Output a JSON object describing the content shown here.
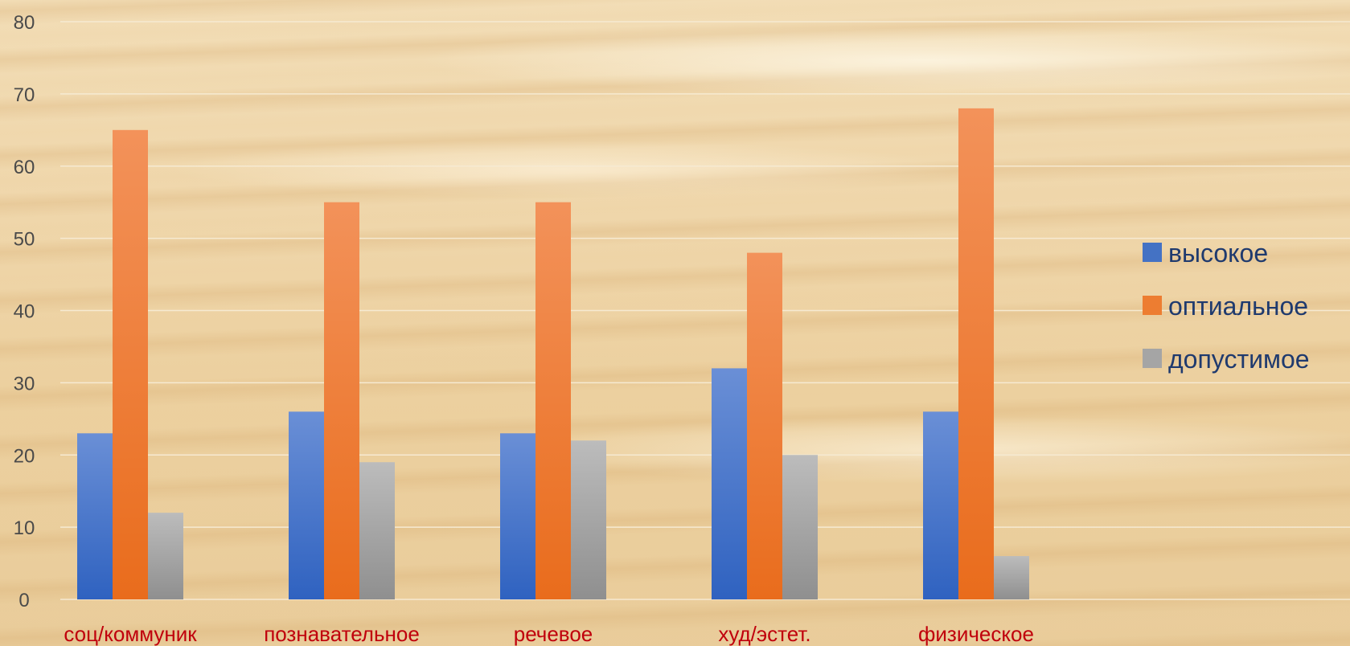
{
  "chart_data": {
    "type": "bar",
    "categories": [
      "соц/коммуник",
      "познавательное",
      "речевое",
      "худ/эстет.",
      "физическое"
    ],
    "series": [
      {
        "name": "высокое",
        "values": [
          23,
          26,
          23,
          32,
          26
        ],
        "color": "#4472c4"
      },
      {
        "name": "оптиальное",
        "values": [
          65,
          55,
          55,
          48,
          68
        ],
        "color": "#ed7d31"
      },
      {
        "name": "допустимое",
        "values": [
          12,
          19,
          22,
          20,
          6
        ],
        "color": "#a5a5a5"
      }
    ],
    "ylim": [
      0,
      80
    ],
    "yticks": [
      0,
      10,
      20,
      30,
      40,
      50,
      60,
      70,
      80
    ],
    "grid": true,
    "legend_position": "right"
  }
}
